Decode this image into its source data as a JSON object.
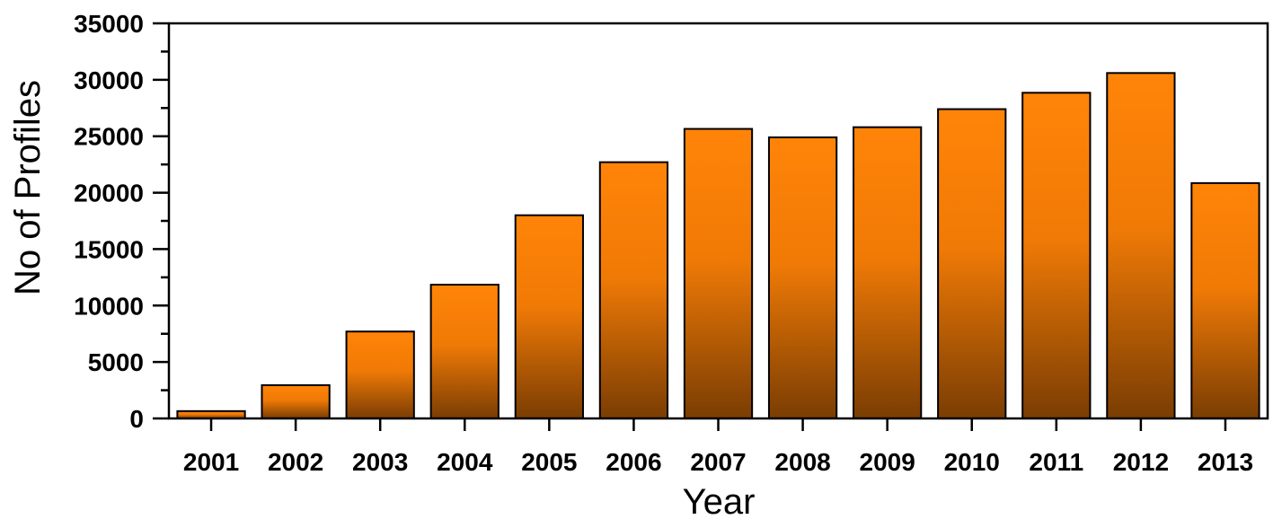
{
  "chart_data": {
    "type": "bar",
    "title": "",
    "xlabel": "Year",
    "ylabel": "No of Profiles",
    "categories": [
      "2001",
      "2002",
      "2003",
      "2004",
      "2005",
      "2006",
      "2007",
      "2008",
      "2009",
      "2010",
      "2011",
      "2012",
      "2013"
    ],
    "values": [
      650,
      2950,
      7700,
      11850,
      18000,
      22700,
      25650,
      24900,
      25800,
      27400,
      28850,
      30600,
      20850
    ],
    "ylim": [
      0,
      35000
    ],
    "yticks": [
      "0",
      "5000",
      "10000",
      "15000",
      "20000",
      "25000",
      "30000",
      "35000"
    ],
    "grid": false,
    "legend": "none",
    "colors": {
      "bar_top": "#ff8408",
      "bar_bottom": "#7a3d03",
      "edge": "#000000"
    }
  }
}
